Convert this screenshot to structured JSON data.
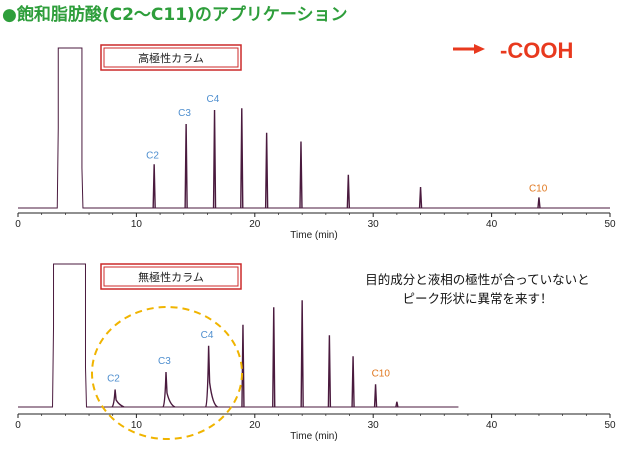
{
  "title": "飽和脂肪酸(C2～C11)のアプリケーション",
  "title_bullet": "●",
  "cooh_label": "-COOH",
  "note_lines": [
    "目的成分と液相の極性が合っていないと",
    "ピーク形状に異常を来す！"
  ],
  "colors": {
    "trace": "#4a1a3e",
    "peak_label_blue": "#4f8fcf",
    "peak_label_orange": "#e07820",
    "box_border": "#cc2a2a",
    "arrow": "#e8391e",
    "title": "#2e9e3b",
    "ellipse": "#f0b400"
  },
  "chart_data": [
    {
      "type": "line",
      "panel_label": "高極性カラム",
      "xlabel": "Time (min)",
      "xlim": [
        0,
        50
      ],
      "x_ticks": [
        "0",
        "10",
        "20",
        "30",
        "40",
        "50"
      ],
      "solvent_front": [
        3.4,
        5.4
      ],
      "peaks": [
        {
          "label": "C2",
          "x": 11.5,
          "height": 0.25
        },
        {
          "label": "C3",
          "x": 14.2,
          "height": 0.48
        },
        {
          "label": "C4",
          "x": 16.6,
          "height": 0.56
        },
        {
          "label": "",
          "x": 18.9,
          "height": 0.57
        },
        {
          "label": "",
          "x": 21.0,
          "height": 0.43
        },
        {
          "label": "",
          "x": 23.9,
          "height": 0.38
        },
        {
          "label": "",
          "x": 27.9,
          "height": 0.19
        },
        {
          "label": "",
          "x": 34.0,
          "height": 0.12
        },
        {
          "label": "C10",
          "x": 44.0,
          "height": 0.06
        }
      ]
    },
    {
      "type": "line",
      "panel_label": "無極性カラム",
      "xlabel": "Time (min)",
      "xlim": [
        0,
        50
      ],
      "x_ticks": [
        "0",
        "10",
        "20",
        "30",
        "40",
        "50"
      ],
      "solvent_front": [
        3.0,
        5.7
      ],
      "trace_end": 37.2,
      "peaks": [
        {
          "label": "C2",
          "x": 8.2,
          "height": 0.1,
          "tailing": true
        },
        {
          "label": "C3",
          "x": 12.5,
          "height": 0.2,
          "tailing": true
        },
        {
          "label": "C4",
          "x": 16.1,
          "height": 0.35,
          "tailing": true
        },
        {
          "label": "",
          "x": 19.0,
          "height": 0.47
        },
        {
          "label": "",
          "x": 21.6,
          "height": 0.57
        },
        {
          "label": "",
          "x": 24.0,
          "height": 0.61
        },
        {
          "label": "",
          "x": 26.3,
          "height": 0.41
        },
        {
          "label": "",
          "x": 28.3,
          "height": 0.29
        },
        {
          "label": "C10",
          "x": 30.2,
          "height": 0.13
        },
        {
          "label": "",
          "x": 32.0,
          "height": 0.03
        }
      ]
    }
  ]
}
